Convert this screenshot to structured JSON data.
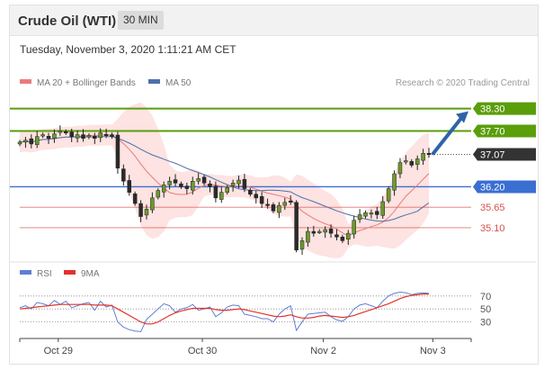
{
  "header": {
    "title": "Crude Oil (WTI)",
    "timeframe": "30 MIN"
  },
  "date_line": "Tuesday, November 3, 2020 1:11:21 AM CET",
  "copyright": "Research © 2020 Trading Central",
  "colors": {
    "green": "#5a9e0a",
    "blue": "#3a6fd2",
    "red": "#d9534f",
    "ma20": "#e97b7b",
    "ma50": "#4f6faa",
    "band": "#fde3e1",
    "dark": "#333333",
    "rsi": "#5f7fd1",
    "ma9": "#e3322b",
    "arrow": "#2f63a8"
  },
  "chart_data": [
    {
      "type": "candlestick",
      "title": "Crude Oil (WTI)",
      "timeframe": "30 MIN",
      "legend": [
        {
          "name": "MA 20 + Bollinger Bands",
          "color": "#e97b7b"
        },
        {
          "name": "MA 50",
          "color": "#4f6faa"
        }
      ],
      "xticks": [
        "Oct 29",
        "Oct 30",
        "Nov 2",
        "Nov 3"
      ],
      "ylim": [
        34.3,
        38.8
      ],
      "current_price": 37.07,
      "levels": [
        {
          "label": "38.30",
          "value": 38.3,
          "color": "#5a9e0a",
          "style": "badge"
        },
        {
          "label": "37.70",
          "value": 37.7,
          "color": "#5a9e0a",
          "style": "badge"
        },
        {
          "label": "37.07",
          "value": 37.07,
          "color": "#333333",
          "style": "current"
        },
        {
          "label": "36.20",
          "value": 36.2,
          "color": "#3a6fd2",
          "style": "badge"
        },
        {
          "label": "35.65",
          "value": 35.65,
          "color": "#d9534f",
          "style": "text"
        },
        {
          "label": "35.10",
          "value": 35.1,
          "color": "#d9534f",
          "style": "text"
        }
      ],
      "close": [
        37.4,
        37.45,
        37.35,
        37.55,
        37.6,
        37.5,
        37.62,
        37.7,
        37.65,
        37.55,
        37.6,
        37.5,
        37.58,
        37.5,
        37.65,
        37.6,
        37.55,
        36.7,
        36.35,
        36.05,
        35.75,
        35.4,
        35.6,
        35.9,
        36.1,
        36.25,
        36.35,
        36.3,
        36.2,
        36.15,
        36.35,
        36.42,
        36.3,
        36.2,
        35.9,
        36.05,
        36.18,
        36.3,
        36.38,
        36.15,
        36.0,
        35.9,
        35.75,
        35.7,
        35.55,
        35.7,
        35.78,
        35.8,
        34.5,
        34.75,
        35.0,
        34.95,
        35.0,
        35.05,
        34.95,
        34.85,
        34.75,
        34.95,
        35.3,
        35.45,
        35.5,
        35.5,
        35.45,
        35.8,
        36.15,
        36.55,
        36.85,
        36.9,
        36.78,
        36.95,
        37.1,
        37.07
      ]
    },
    {
      "type": "line",
      "legend": [
        {
          "name": "RSI",
          "color": "#5f7fd1"
        },
        {
          "name": "9MA",
          "color": "#e3322b"
        }
      ],
      "yticks": [
        70,
        50,
        30
      ],
      "ylim": [
        10,
        85
      ],
      "series": [
        {
          "name": "RSI",
          "values": [
            52,
            55,
            50,
            60,
            58,
            55,
            63,
            57,
            62,
            52,
            55,
            58,
            60,
            48,
            62,
            53,
            56,
            30,
            22,
            18,
            16,
            15,
            34,
            42,
            50,
            58,
            55,
            45,
            50,
            52,
            57,
            48,
            50,
            53,
            38,
            44,
            53,
            56,
            55,
            42,
            40,
            38,
            35,
            35,
            30,
            42,
            50,
            55,
            17,
            30,
            42,
            43,
            44,
            45,
            38,
            33,
            31,
            38,
            50,
            56,
            58,
            55,
            52,
            62,
            70,
            74,
            76,
            75,
            72,
            74,
            75,
            74
          ]
        },
        {
          "name": "9MA",
          "values": [
            50,
            51,
            52,
            53,
            54,
            55,
            56,
            57,
            57,
            57,
            57,
            57,
            57,
            56,
            56,
            56,
            55,
            50,
            45,
            40,
            35,
            30,
            27,
            27,
            30,
            35,
            40,
            44,
            47,
            49,
            51,
            51,
            51,
            51,
            49,
            48,
            48,
            49,
            50,
            49,
            47,
            45,
            43,
            41,
            39,
            38,
            39,
            41,
            38,
            36,
            36,
            37,
            39,
            40,
            39,
            38,
            37,
            38,
            40,
            43,
            46,
            49,
            52,
            55,
            58,
            62,
            66,
            69,
            71,
            72,
            73,
            73
          ]
        }
      ]
    }
  ]
}
